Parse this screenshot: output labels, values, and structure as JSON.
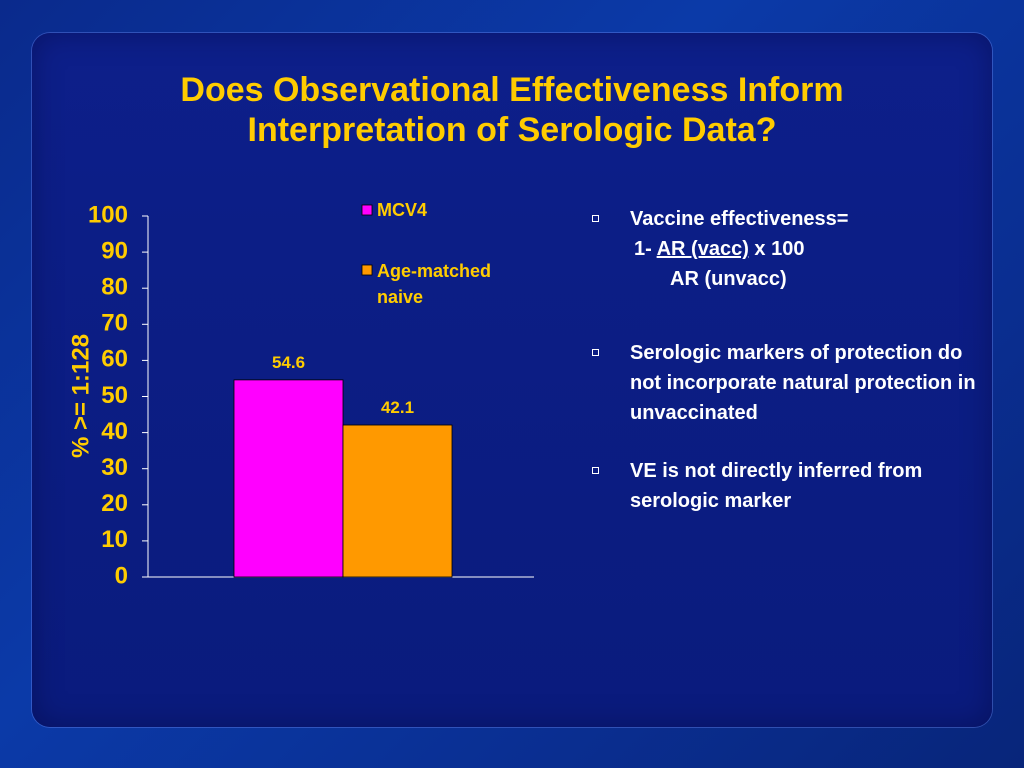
{
  "slide": {
    "title_line1": "Does Observational Effectiveness Inform",
    "title_line2": "Interpretation of Serologic Data?"
  },
  "bullets": {
    "b1_text": "Vaccine effectiveness=",
    "b1_formula_prefix": "1- ",
    "b1_formula_numerator": " AR (vacc)",
    "b1_formula_suffix": " x 100",
    "b1_formula_denominator": "AR (unvacc)",
    "b2_text": "Serologic markers of protection do not incorporate natural protection in unvaccinated",
    "b3_text": "VE is not directly inferred from serologic marker"
  },
  "colors": {
    "title": "#ffcc00",
    "mcv4": "#ff00ff",
    "age_matched": "#ff9900"
  },
  "chart_data": {
    "type": "bar",
    "ylabel": "% >= 1:128",
    "ylim": [
      0,
      100
    ],
    "yticks": [
      "0",
      "10",
      "20",
      "30",
      "40",
      "50",
      "60",
      "70",
      "80",
      "90",
      "100"
    ],
    "series": [
      {
        "name": "MCV4",
        "values": [
          54.6
        ],
        "color": "#ff00ff",
        "label": "54.6"
      },
      {
        "name": "Age-matched naive",
        "values": [
          42.1
        ],
        "color": "#ff9900",
        "label": "42.1"
      }
    ],
    "legend": [
      "MCV4",
      "Age-matched",
      "naive"
    ],
    "grid": false,
    "legend_position": "top-right"
  }
}
